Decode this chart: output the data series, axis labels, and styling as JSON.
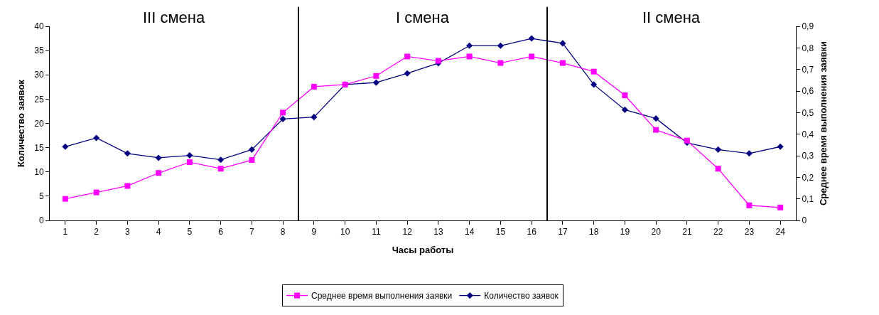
{
  "chart_data": {
    "type": "line",
    "xlabel": "Часы работы",
    "ylabel": "Количество заявок",
    "y2label": "Среднее время выполнения заявки",
    "x": [
      1,
      2,
      3,
      4,
      5,
      6,
      7,
      8,
      9,
      10,
      11,
      12,
      13,
      14,
      15,
      16,
      17,
      18,
      19,
      20,
      21,
      22,
      23,
      24
    ],
    "xlim": [
      0.5,
      24.5
    ],
    "xticks": [
      1,
      2,
      3,
      4,
      5,
      6,
      7,
      8,
      9,
      10,
      11,
      12,
      13,
      14,
      15,
      16,
      17,
      18,
      19,
      20,
      21,
      22,
      23,
      24
    ],
    "ylim": [
      0,
      40
    ],
    "yticks": [
      0,
      5,
      10,
      15,
      20,
      25,
      30,
      35,
      40
    ],
    "y2lim": [
      0,
      0.9
    ],
    "y2ticks": [
      {
        "value": 0,
        "label": "0"
      },
      {
        "value": 0.1,
        "label": "0,1"
      },
      {
        "value": 0.2,
        "label": "0,2"
      },
      {
        "value": 0.3,
        "label": "0,3"
      },
      {
        "value": 0.4,
        "label": "0,4"
      },
      {
        "value": 0.5,
        "label": "0,5"
      },
      {
        "value": 0.6,
        "label": "0,6"
      },
      {
        "value": 0.7,
        "label": "0,7"
      },
      {
        "value": 0.8,
        "label": "0,8"
      },
      {
        "value": 0.9,
        "label": "0,9"
      }
    ],
    "series": [
      {
        "name": "Среднее время выполнения заявки",
        "color": "#ff00ff",
        "axis": "y2",
        "marker": "square",
        "values": [
          0.1,
          0.13,
          0.16,
          0.22,
          0.27,
          0.24,
          0.28,
          0.5,
          0.62,
          0.63,
          0.67,
          0.76,
          0.74,
          0.76,
          0.73,
          0.76,
          0.73,
          0.69,
          0.58,
          0.42,
          0.37,
          0.24,
          0.07,
          0.06
        ]
      },
      {
        "name": "Количество заявок",
        "color": "#000080",
        "axis": "y",
        "marker": "diamond",
        "values": [
          15.2,
          17,
          13.8,
          12.9,
          13.4,
          12.5,
          14.6,
          20.9,
          21.3,
          28,
          28.4,
          30.3,
          32.4,
          36,
          36,
          37.5,
          36.5,
          28,
          22.8,
          21,
          16,
          14.6,
          13.8,
          15.2
        ]
      }
    ],
    "ref_lines": [
      {
        "axis": "x",
        "value": 8.5,
        "color": "#000000"
      },
      {
        "axis": "x",
        "value": 16.5,
        "color": "#000000"
      }
    ],
    "annotations": [
      "III смена",
      "I смена",
      "II смена"
    ],
    "grid": false,
    "legend": "bottom",
    "line_style": "solid"
  }
}
